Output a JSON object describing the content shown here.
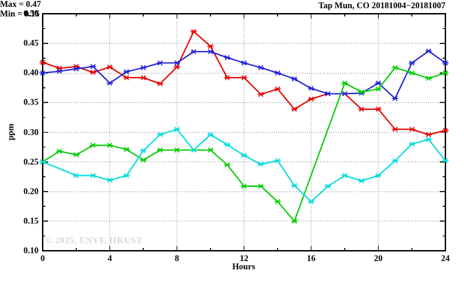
{
  "header": {
    "title": "Tap Mun, CO 20181004−20181007"
  },
  "annotations": {
    "max_label": "Max = 0.47",
    "min_label": "Min = 0.15"
  },
  "watermark": "© 2025, ENVF, HKUST",
  "chart_data": {
    "type": "line",
    "title": "Tap Mun, CO 20181004−20181007",
    "xlabel": "Hours",
    "ylabel": "ppm",
    "xlim": [
      0,
      24
    ],
    "ylim": [
      0.1,
      0.5
    ],
    "legend": "none",
    "marker": "x-with-horizontal-bar",
    "grid": {
      "style": "dotted",
      "color": "#7a7a7a",
      "x_values": [
        4,
        8,
        12,
        16,
        20
      ],
      "y_values": [
        0.15,
        0.2,
        0.25,
        0.3,
        0.35,
        0.4,
        0.45
      ]
    },
    "x_ticks": {
      "values": [
        0,
        4,
        8,
        12,
        16,
        20,
        24
      ],
      "labels": [
        "0",
        "4",
        "8",
        "12",
        "16",
        "20",
        "24"
      ],
      "minor_values": [
        2,
        6,
        10,
        14,
        18,
        22
      ]
    },
    "y_ticks": {
      "values": [
        0.1,
        0.15,
        0.2,
        0.25,
        0.3,
        0.35,
        0.4,
        0.45,
        0.5
      ],
      "labels": [
        "0.10",
        "0.15",
        "0.20",
        "0.25",
        "0.30",
        "0.35",
        "0.40",
        "0.45",
        "0.50"
      ],
      "minor_values": [
        0.125,
        0.175,
        0.225,
        0.275,
        0.325,
        0.375,
        0.425,
        0.475
      ]
    },
    "stats": {
      "max": 0.47,
      "min": 0.15
    },
    "x": [
      0,
      1,
      2,
      3,
      4,
      5,
      6,
      7,
      8,
      9,
      10,
      11,
      12,
      13,
      14,
      15,
      16,
      17,
      18,
      19,
      20,
      21,
      22,
      23,
      24
    ],
    "series": [
      {
        "name": "series-red",
        "color": "#e60000",
        "values": [
          0.418,
          0.408,
          0.411,
          0.401,
          0.41,
          0.392,
          0.392,
          0.382,
          0.41,
          0.47,
          0.445,
          0.392,
          0.392,
          0.364,
          0.373,
          0.339,
          0.356,
          0.365,
          0.365,
          0.339,
          0.339,
          0.305,
          0.305,
          0.296,
          0.303
        ]
      },
      {
        "name": "series-blue",
        "color": "#2121d8",
        "values": [
          0.4,
          0.403,
          0.407,
          0.411,
          0.383,
          0.402,
          0.409,
          0.417,
          0.417,
          0.436,
          0.436,
          0.426,
          0.417,
          0.409,
          0.4,
          0.39,
          0.374,
          0.365,
          0.365,
          0.366,
          0.383,
          0.357,
          0.417,
          0.437,
          0.417
        ]
      },
      {
        "name": "series-green",
        "color": "#00cc00",
        "values": [
          0.25,
          0.268,
          0.262,
          0.278,
          0.278,
          0.271,
          0.253,
          0.27,
          0.27,
          0.27,
          0.27,
          0.245,
          0.209,
          0.209,
          0.183,
          0.15,
          null,
          null,
          0.383,
          0.368,
          0.373,
          0.409,
          0.4,
          0.391,
          0.4
        ]
      },
      {
        "name": "series-cyan",
        "color": "#00dcdc",
        "values": [
          0.25,
          null,
          0.227,
          0.227,
          0.219,
          0.227,
          0.269,
          0.296,
          0.305,
          0.27,
          0.296,
          0.279,
          0.261,
          0.246,
          0.252,
          0.21,
          0.183,
          0.209,
          0.227,
          0.218,
          0.227,
          0.252,
          0.28,
          0.288,
          0.252
        ]
      }
    ]
  }
}
